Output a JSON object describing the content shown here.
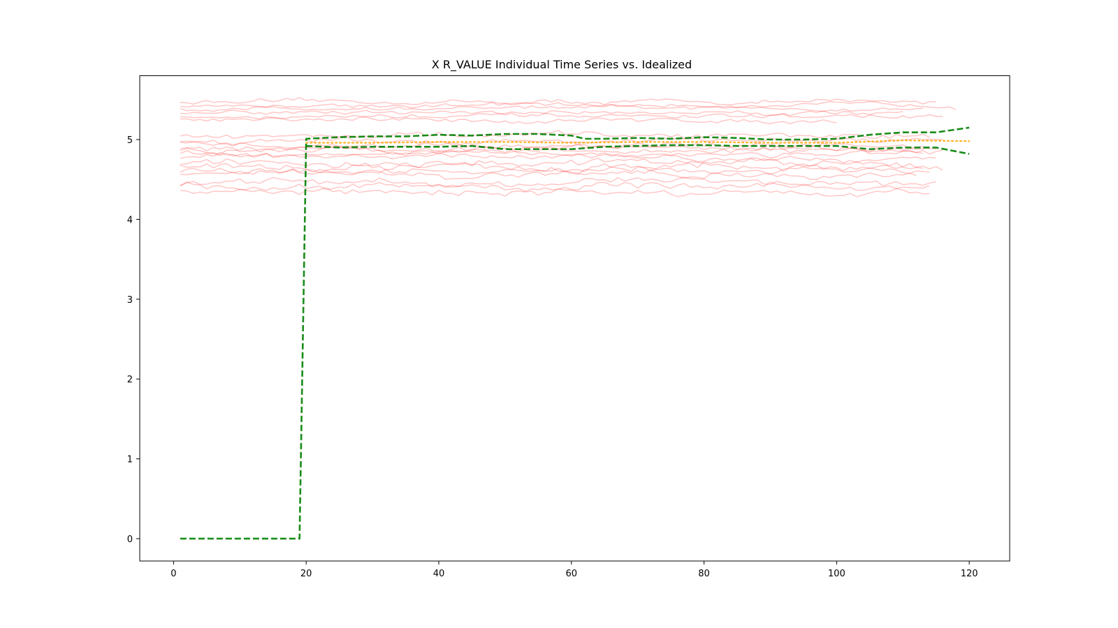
{
  "chart_data": {
    "type": "line",
    "title": "X R_VALUE Individual Time Series vs. Idealized",
    "xlabel": "",
    "ylabel": "",
    "xlim": [
      -5.1,
      126.1
    ],
    "ylim": [
      -0.28,
      5.8
    ],
    "x_ticks": [
      0,
      20,
      40,
      60,
      80,
      100,
      120
    ],
    "y_ticks": [
      0,
      1,
      2,
      3,
      4,
      5
    ],
    "grid": false,
    "legend": "none",
    "colors": {
      "individual": "#ff0000",
      "upper_bound": "#008000",
      "lower_bound": "#008000",
      "idealized": "#ffa500"
    },
    "individual_series": [
      {
        "start": 1,
        "end": 115,
        "level": 5.47,
        "amp": 0.03
      },
      {
        "start": 1,
        "end": 118,
        "level": 5.43,
        "amp": 0.03
      },
      {
        "start": 1,
        "end": 113,
        "level": 5.39,
        "amp": 0.03
      },
      {
        "start": 1,
        "end": 110,
        "level": 5.34,
        "amp": 0.03
      },
      {
        "start": 1,
        "end": 116,
        "level": 5.29,
        "amp": 0.03
      },
      {
        "start": 1,
        "end": 100,
        "level": 5.24,
        "amp": 0.03
      },
      {
        "start": 1,
        "end": 114,
        "level": 5.05,
        "amp": 0.04
      },
      {
        "start": 1,
        "end": 116,
        "level": 4.98,
        "amp": 0.04
      },
      {
        "start": 1,
        "end": 115,
        "level": 4.93,
        "amp": 0.04
      },
      {
        "start": 1,
        "end": 114,
        "level": 4.89,
        "amp": 0.04
      },
      {
        "start": 1,
        "end": 113,
        "level": 4.86,
        "amp": 0.04
      },
      {
        "start": 1,
        "end": 116,
        "level": 4.82,
        "amp": 0.04
      },
      {
        "start": 1,
        "end": 115,
        "level": 4.78,
        "amp": 0.04
      },
      {
        "start": 1,
        "end": 116,
        "level": 4.7,
        "amp": 0.05
      },
      {
        "start": 1,
        "end": 113,
        "level": 4.65,
        "amp": 0.05
      },
      {
        "start": 1,
        "end": 114,
        "level": 4.6,
        "amp": 0.05
      },
      {
        "start": 1,
        "end": 112,
        "level": 4.56,
        "amp": 0.05
      },
      {
        "start": 1,
        "end": 115,
        "level": 4.47,
        "amp": 0.05
      },
      {
        "start": 1,
        "end": 114,
        "level": 4.41,
        "amp": 0.05
      },
      {
        "start": 1,
        "end": 114,
        "level": 4.34,
        "amp": 0.05
      }
    ],
    "series": [
      {
        "style": "dashed",
        "x": [
          1,
          19,
          20,
          25,
          30,
          35,
          40,
          45,
          50,
          55,
          60,
          62,
          65,
          70,
          75,
          80,
          85,
          90,
          95,
          100,
          105,
          110,
          115,
          120
        ],
        "y": [
          0,
          0,
          5.01,
          5.03,
          5.04,
          5.04,
          5.06,
          5.05,
          5.07,
          5.07,
          5.05,
          5.01,
          5.01,
          5.02,
          5.01,
          5.03,
          5.02,
          5.0,
          5.0,
          5.01,
          5.06,
          5.09,
          5.09,
          5.15
        ]
      },
      {
        "style": "dashed",
        "x": [
          20,
          25,
          30,
          35,
          40,
          45,
          50,
          55,
          60,
          65,
          70,
          75,
          80,
          85,
          90,
          95,
          100,
          105,
          110,
          115,
          120
        ],
        "y": [
          4.92,
          4.9,
          4.91,
          4.91,
          4.91,
          4.92,
          4.88,
          4.88,
          4.88,
          4.91,
          4.92,
          4.93,
          4.93,
          4.92,
          4.92,
          4.92,
          4.92,
          4.88,
          4.9,
          4.9,
          4.82
        ]
      },
      {
        "style": "dotted",
        "x": [
          20,
          30,
          40,
          50,
          60,
          70,
          80,
          90,
          100,
          110,
          120
        ],
        "y": [
          4.96,
          4.96,
          4.97,
          4.97,
          4.96,
          4.97,
          4.97,
          4.96,
          4.96,
          4.99,
          4.98
        ]
      }
    ]
  }
}
